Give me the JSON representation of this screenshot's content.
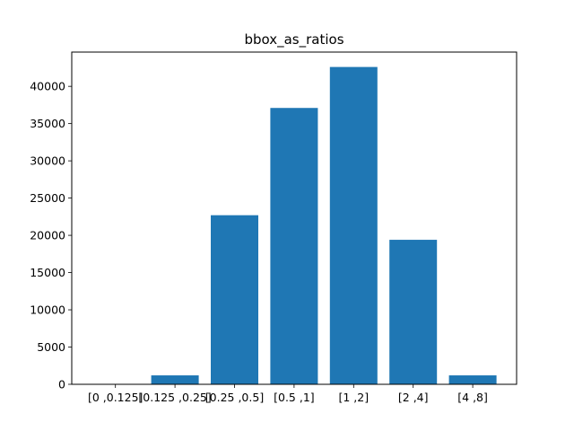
{
  "chart_data": {
    "type": "bar",
    "title": "bbox_as_ratios",
    "xlabel": "",
    "ylabel": "",
    "categories": [
      "[0 ,0.125]",
      "[0.125 ,0.25]",
      "[0.25 ,0.5]",
      "[0.5 ,1]",
      "[1 ,2]",
      "[2 ,4]",
      "[4 ,8]"
    ],
    "values": [
      30,
      1200,
      22700,
      37100,
      42600,
      19400,
      1200
    ],
    "ylim": [
      0,
      44600
    ],
    "yticks": [
      0,
      5000,
      10000,
      15000,
      20000,
      25000,
      30000,
      35000,
      40000
    ],
    "bar_color": "#1f77b4",
    "grid": false,
    "legend": "none"
  }
}
